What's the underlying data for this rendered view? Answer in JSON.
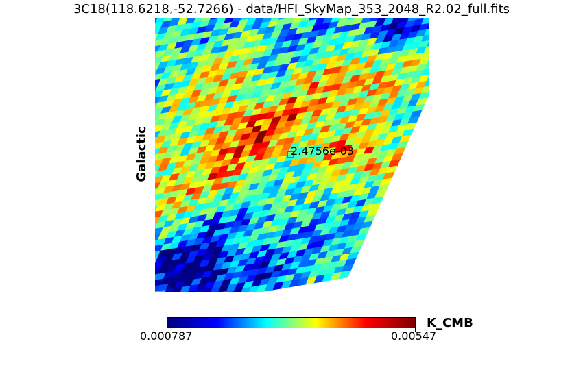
{
  "window": {
    "title": "3C18(118.6218,-52.7266) - data/HFI_SkyMap_353_2048_R2.02_full.fits"
  },
  "map": {
    "coordinate_system": "Galactic",
    "colormap": "jet",
    "marker_value": "2.4756e-03",
    "marker_color": "#c020ff"
  },
  "colorbar": {
    "min_label": "0.000787",
    "max_label": "0.00547",
    "unit": "K_CMB",
    "stops": [
      "#00007f",
      "#0000ff",
      "#00ffff",
      "#ffff00",
      "#ff0000",
      "#7f0000"
    ]
  }
}
